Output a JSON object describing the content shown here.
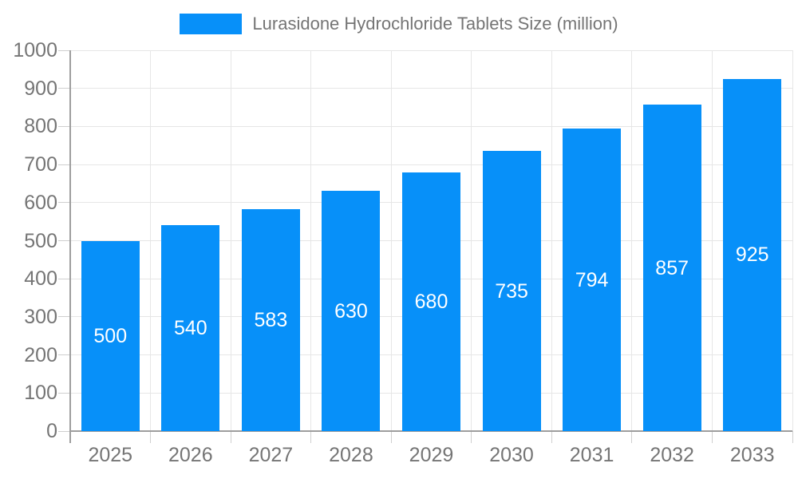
{
  "chart_data": {
    "type": "bar",
    "title": "Lurasidone Hydrochloride Tablets Size (million)",
    "categories": [
      "2025",
      "2026",
      "2027",
      "2028",
      "2029",
      "2030",
      "2031",
      "2032",
      "2033"
    ],
    "series": [
      {
        "name": "Lurasidone Hydrochloride Tablets Size (million)",
        "color": "#0790f9",
        "values": [
          500,
          540,
          583,
          630,
          680,
          735,
          794,
          857,
          925
        ]
      }
    ],
    "xlabel": "",
    "ylabel": "",
    "ylim": [
      0,
      1000
    ],
    "yticks": [
      0,
      100,
      200,
      300,
      400,
      500,
      600,
      700,
      800,
      900,
      1000
    ],
    "grid": true,
    "legend_position": "top",
    "value_labels": "inside-center"
  },
  "colors": {
    "bar": "#0790f9",
    "axis_label": "#757575",
    "value_label": "#ffffff",
    "gridline": "#e6e6e6",
    "axis_line": "#9e9e9e",
    "tick": "#cfcfcf",
    "background": "#ffffff"
  }
}
